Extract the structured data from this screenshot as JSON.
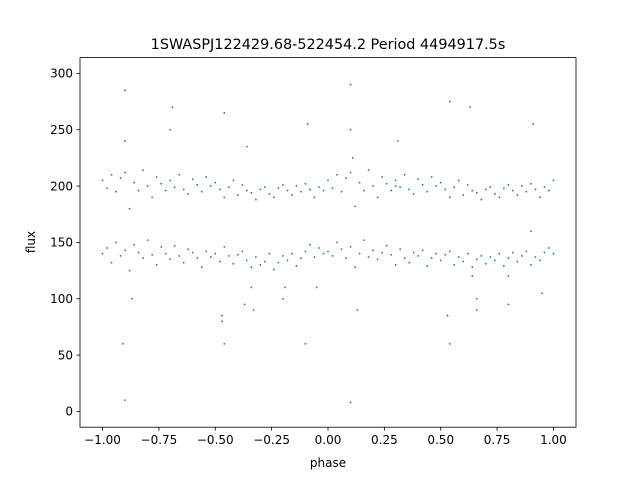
{
  "chart_data": {
    "type": "scatter",
    "title": "1SWASPJ122429.68-522454.2 Period 4494917.5s",
    "xlabel": "phase",
    "ylabel": "flux",
    "xlim": [
      -1.1,
      1.1
    ],
    "ylim": [
      -14,
      314
    ],
    "xticks": [
      {
        "value": -1.0,
        "label": "−1.00"
      },
      {
        "value": -0.75,
        "label": "−0.75"
      },
      {
        "value": -0.5,
        "label": "−0.50"
      },
      {
        "value": -0.25,
        "label": "−0.25"
      },
      {
        "value": 0.0,
        "label": "0.00"
      },
      {
        "value": 0.25,
        "label": "0.25"
      },
      {
        "value": 0.5,
        "label": "0.50"
      },
      {
        "value": 0.75,
        "label": "0.75"
      },
      {
        "value": 1.0,
        "label": "1.00"
      }
    ],
    "yticks": [
      {
        "value": 0,
        "label": "0"
      },
      {
        "value": 50,
        "label": "50"
      },
      {
        "value": 100,
        "label": "100"
      },
      {
        "value": 150,
        "label": "150"
      },
      {
        "value": 200,
        "label": "200"
      },
      {
        "value": 250,
        "label": "250"
      },
      {
        "value": 300,
        "label": "300"
      }
    ],
    "grid": false,
    "marker_color": "#1f77b4",
    "series": [
      {
        "x": [
          -1.0,
          -0.98,
          -0.96,
          -0.94,
          -0.92,
          -0.9,
          -0.88,
          -0.86,
          -0.84,
          -0.82,
          -0.8,
          -0.78,
          -0.76,
          -0.74,
          -0.72,
          -0.7,
          -0.68,
          -0.66,
          -0.64,
          -0.62,
          -0.6,
          -0.58,
          -0.56,
          -0.54,
          -0.52,
          -0.5,
          -0.48,
          -0.46,
          -0.44,
          -0.42,
          -0.4,
          -0.38,
          -0.36,
          -0.34,
          -0.32,
          -0.3,
          -0.28,
          -0.26,
          -0.24,
          -0.22,
          -0.2,
          -0.18,
          -0.16,
          -0.14,
          -0.12,
          -0.1,
          -0.08,
          -0.06,
          -0.04,
          -0.02,
          0.0,
          0.02,
          0.04,
          0.06,
          0.08,
          0.1,
          0.12,
          0.14,
          0.16,
          0.18,
          0.2,
          0.22,
          0.24,
          0.26,
          0.28,
          0.3,
          0.32,
          0.34,
          0.36,
          0.38,
          0.4,
          0.42,
          0.44,
          0.46,
          0.48,
          0.5,
          0.52,
          0.54,
          0.56,
          0.58,
          0.6,
          0.62,
          0.64,
          0.66,
          0.68,
          0.7,
          0.72,
          0.74,
          0.76,
          0.78,
          0.8,
          0.82,
          0.84,
          0.86,
          0.88,
          0.9,
          0.92,
          0.94,
          0.96,
          0.98,
          1.0,
          -1.0,
          -0.98,
          -0.96,
          -0.94,
          -0.92,
          -0.9,
          -0.88,
          -0.86,
          -0.84,
          -0.82,
          -0.8,
          -0.78,
          -0.76,
          -0.74,
          -0.72,
          -0.7,
          -0.68,
          -0.66,
          -0.64,
          -0.62,
          -0.6,
          -0.58,
          -0.56,
          -0.54,
          -0.52,
          -0.5,
          -0.48,
          -0.46,
          -0.44,
          -0.42,
          -0.4,
          -0.38,
          -0.36,
          -0.34,
          -0.32,
          -0.3,
          -0.28,
          -0.26,
          -0.24,
          -0.22,
          -0.2,
          -0.18,
          -0.16,
          -0.14,
          -0.12,
          -0.1,
          -0.08,
          -0.06,
          -0.04,
          -0.02,
          0.0,
          0.02,
          0.04,
          0.06,
          0.08,
          0.1,
          0.12,
          0.14,
          0.16,
          0.18,
          0.2,
          0.22,
          0.24,
          0.26,
          0.28,
          0.3,
          0.32,
          0.34,
          0.36,
          0.38,
          0.4,
          0.42,
          0.44,
          0.46,
          0.48,
          0.5,
          0.52,
          0.54,
          0.56,
          0.58,
          0.6,
          0.62,
          0.64,
          0.66,
          0.68,
          0.7,
          0.72,
          0.74,
          0.76,
          0.78,
          0.8,
          0.82,
          0.84,
          0.86,
          0.88,
          0.9,
          0.92,
          0.94,
          0.96,
          0.98,
          1.0,
          -0.9,
          -0.9,
          -0.9,
          -0.91,
          -0.69,
          -0.7,
          -0.46,
          -0.47,
          -0.37,
          -0.36,
          -0.09,
          -0.1,
          0.1,
          0.1,
          0.1,
          0.11,
          0.31,
          0.3,
          0.54,
          0.53,
          0.63,
          0.64,
          0.91,
          0.9,
          -0.47,
          -0.46,
          0.53,
          0.54,
          -0.33,
          -0.34,
          0.66,
          0.66,
          -0.2,
          -0.19,
          0.8,
          0.8,
          -0.87,
          0.13,
          -0.05,
          0.95
        ],
        "y": [
          205,
          198,
          210,
          195,
          207,
          212,
          180,
          203,
          196,
          214,
          200,
          190,
          208,
          202,
          196,
          205,
          199,
          210,
          197,
          193,
          206,
          201,
          195,
          208,
          200,
          203,
          197,
          190,
          199,
          205,
          192,
          201,
          196,
          194,
          188,
          197,
          199,
          193,
          190,
          198,
          201,
          196,
          192,
          200,
          195,
          202,
          197,
          190,
          199,
          196,
          205,
          198,
          210,
          195,
          207,
          212,
          182,
          203,
          196,
          214,
          200,
          190,
          208,
          202,
          196,
          205,
          199,
          210,
          197,
          193,
          206,
          201,
          195,
          208,
          200,
          203,
          197,
          190,
          199,
          205,
          192,
          201,
          196,
          194,
          188,
          197,
          199,
          193,
          190,
          198,
          201,
          196,
          192,
          200,
          195,
          202,
          197,
          190,
          199,
          196,
          205,
          140,
          145,
          132,
          150,
          138,
          143,
          125,
          148,
          141,
          136,
          152,
          139,
          130,
          146,
          140,
          135,
          147,
          138,
          132,
          144,
          141,
          136,
          128,
          142,
          137,
          140,
          133,
          146,
          138,
          131,
          139,
          142,
          134,
          128,
          137,
          130,
          133,
          140,
          126,
          132,
          138,
          134,
          140,
          129,
          136,
          142,
          148,
          137,
          145,
          140,
          142,
          138,
          150,
          144,
          136,
          146,
          128,
          140,
          152,
          137,
          143,
          135,
          141,
          147,
          139,
          130,
          144,
          136,
          132,
          141,
          138,
          143,
          129,
          136,
          140,
          134,
          139,
          142,
          130,
          137,
          133,
          140,
          128,
          135,
          138,
          131,
          137,
          134,
          140,
          129,
          136,
          141,
          133,
          138,
          142,
          130,
          137,
          134,
          141,
          145,
          140,
          285,
          240,
          10,
          60,
          270,
          250,
          265,
          85,
          95,
          235,
          255,
          60,
          290,
          250,
          8,
          225,
          240,
          200,
          275,
          85,
          270,
          120,
          255,
          160,
          80,
          60,
          85,
          60,
          90,
          110,
          90,
          100,
          100,
          110,
          95,
          120,
          100,
          90,
          110,
          105
        ]
      }
    ]
  }
}
